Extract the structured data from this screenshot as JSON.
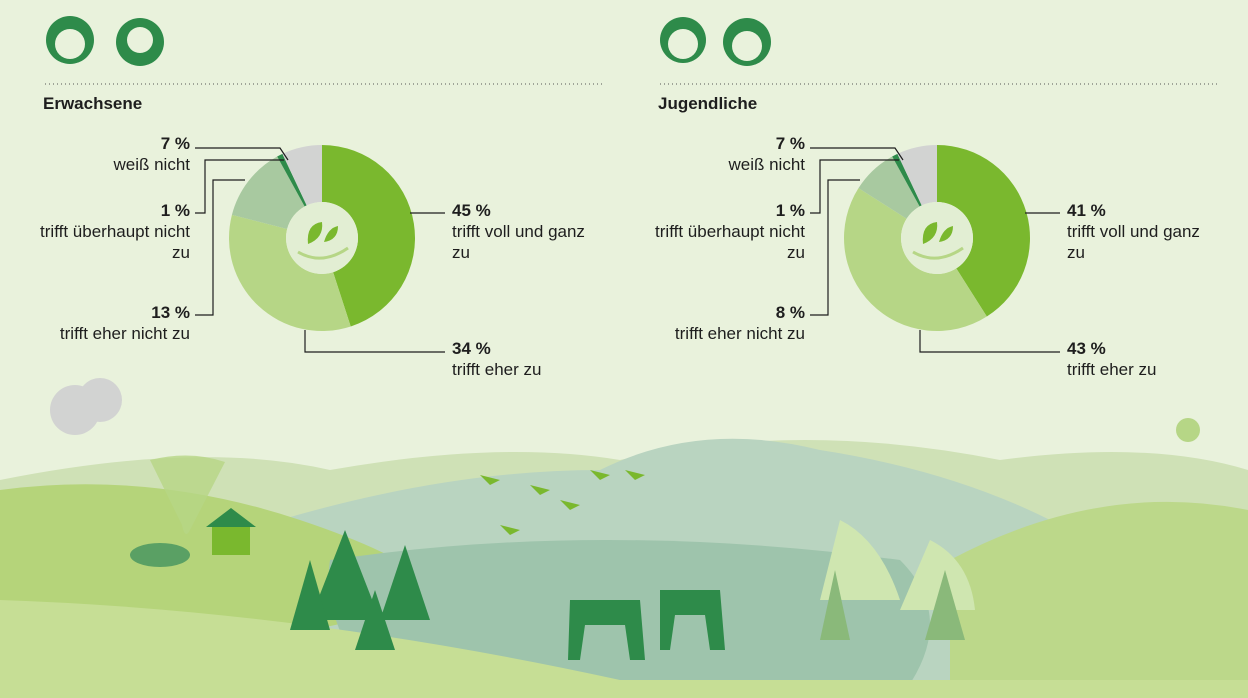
{
  "chart_data": [
    {
      "type": "pie",
      "title": "Erwachsene",
      "categories": [
        "trifft voll und ganz zu",
        "trifft eher zu",
        "trifft eher nicht zu",
        "trifft überhaupt nicht zu",
        "weiß nicht"
      ],
      "values": [
        45,
        34,
        13,
        1,
        7
      ],
      "value_labels": [
        "45 %",
        "34 %",
        "13 %",
        "1 %",
        "7 %"
      ],
      "colors": [
        "#7ab82e",
        "#b6d686",
        "#a8c9a0",
        "#2e8b4a",
        "#d2d3d2"
      ]
    },
    {
      "type": "pie",
      "title": "Jugendliche",
      "categories": [
        "trifft voll und ganz zu",
        "trifft eher zu",
        "trifft eher nicht zu",
        "trifft überhaupt nicht zu",
        "weiß nicht"
      ],
      "values": [
        41,
        43,
        8,
        1,
        7
      ],
      "value_labels": [
        "41 %",
        "43 %",
        "8 %",
        "1 %",
        "7 %"
      ],
      "colors": [
        "#7ab82e",
        "#b6d686",
        "#a8c9a0",
        "#2e8b4a",
        "#d2d3d2"
      ]
    }
  ]
}
